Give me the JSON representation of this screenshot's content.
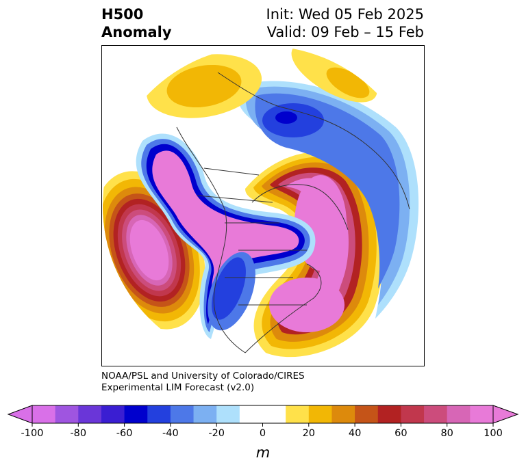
{
  "title": {
    "variable": "H500",
    "field": "Anomaly",
    "init": "Init: Wed 05 Feb 2025",
    "valid": "Valid: 09 Feb – 15 Feb"
  },
  "credit": {
    "line1": "NOAA/PSL and University of Colorado/CIRES",
    "line2": "Experimental LIM Forecast (v2.0)"
  },
  "colorbar": {
    "ticks": [
      "-100",
      "-80",
      "-60",
      "-40",
      "-20",
      "0",
      "20",
      "40",
      "60",
      "80",
      "100"
    ],
    "unit": "m",
    "range": [
      -100,
      100
    ],
    "step": 10,
    "colors": [
      "#d970e8",
      "#9f55e0",
      "#6a36d8",
      "#3a1ed2",
      "#0000cd",
      "#2340de",
      "#4d78e8",
      "#7cb0f2",
      "#aee0fc",
      "#ffffff",
      "#ffffff",
      "#ffe14a",
      "#f2b705",
      "#dd8a0c",
      "#c55418",
      "#b22222",
      "#c1374d",
      "#cc4c7c",
      "#d766b6",
      "#e87ad8"
    ]
  }
}
